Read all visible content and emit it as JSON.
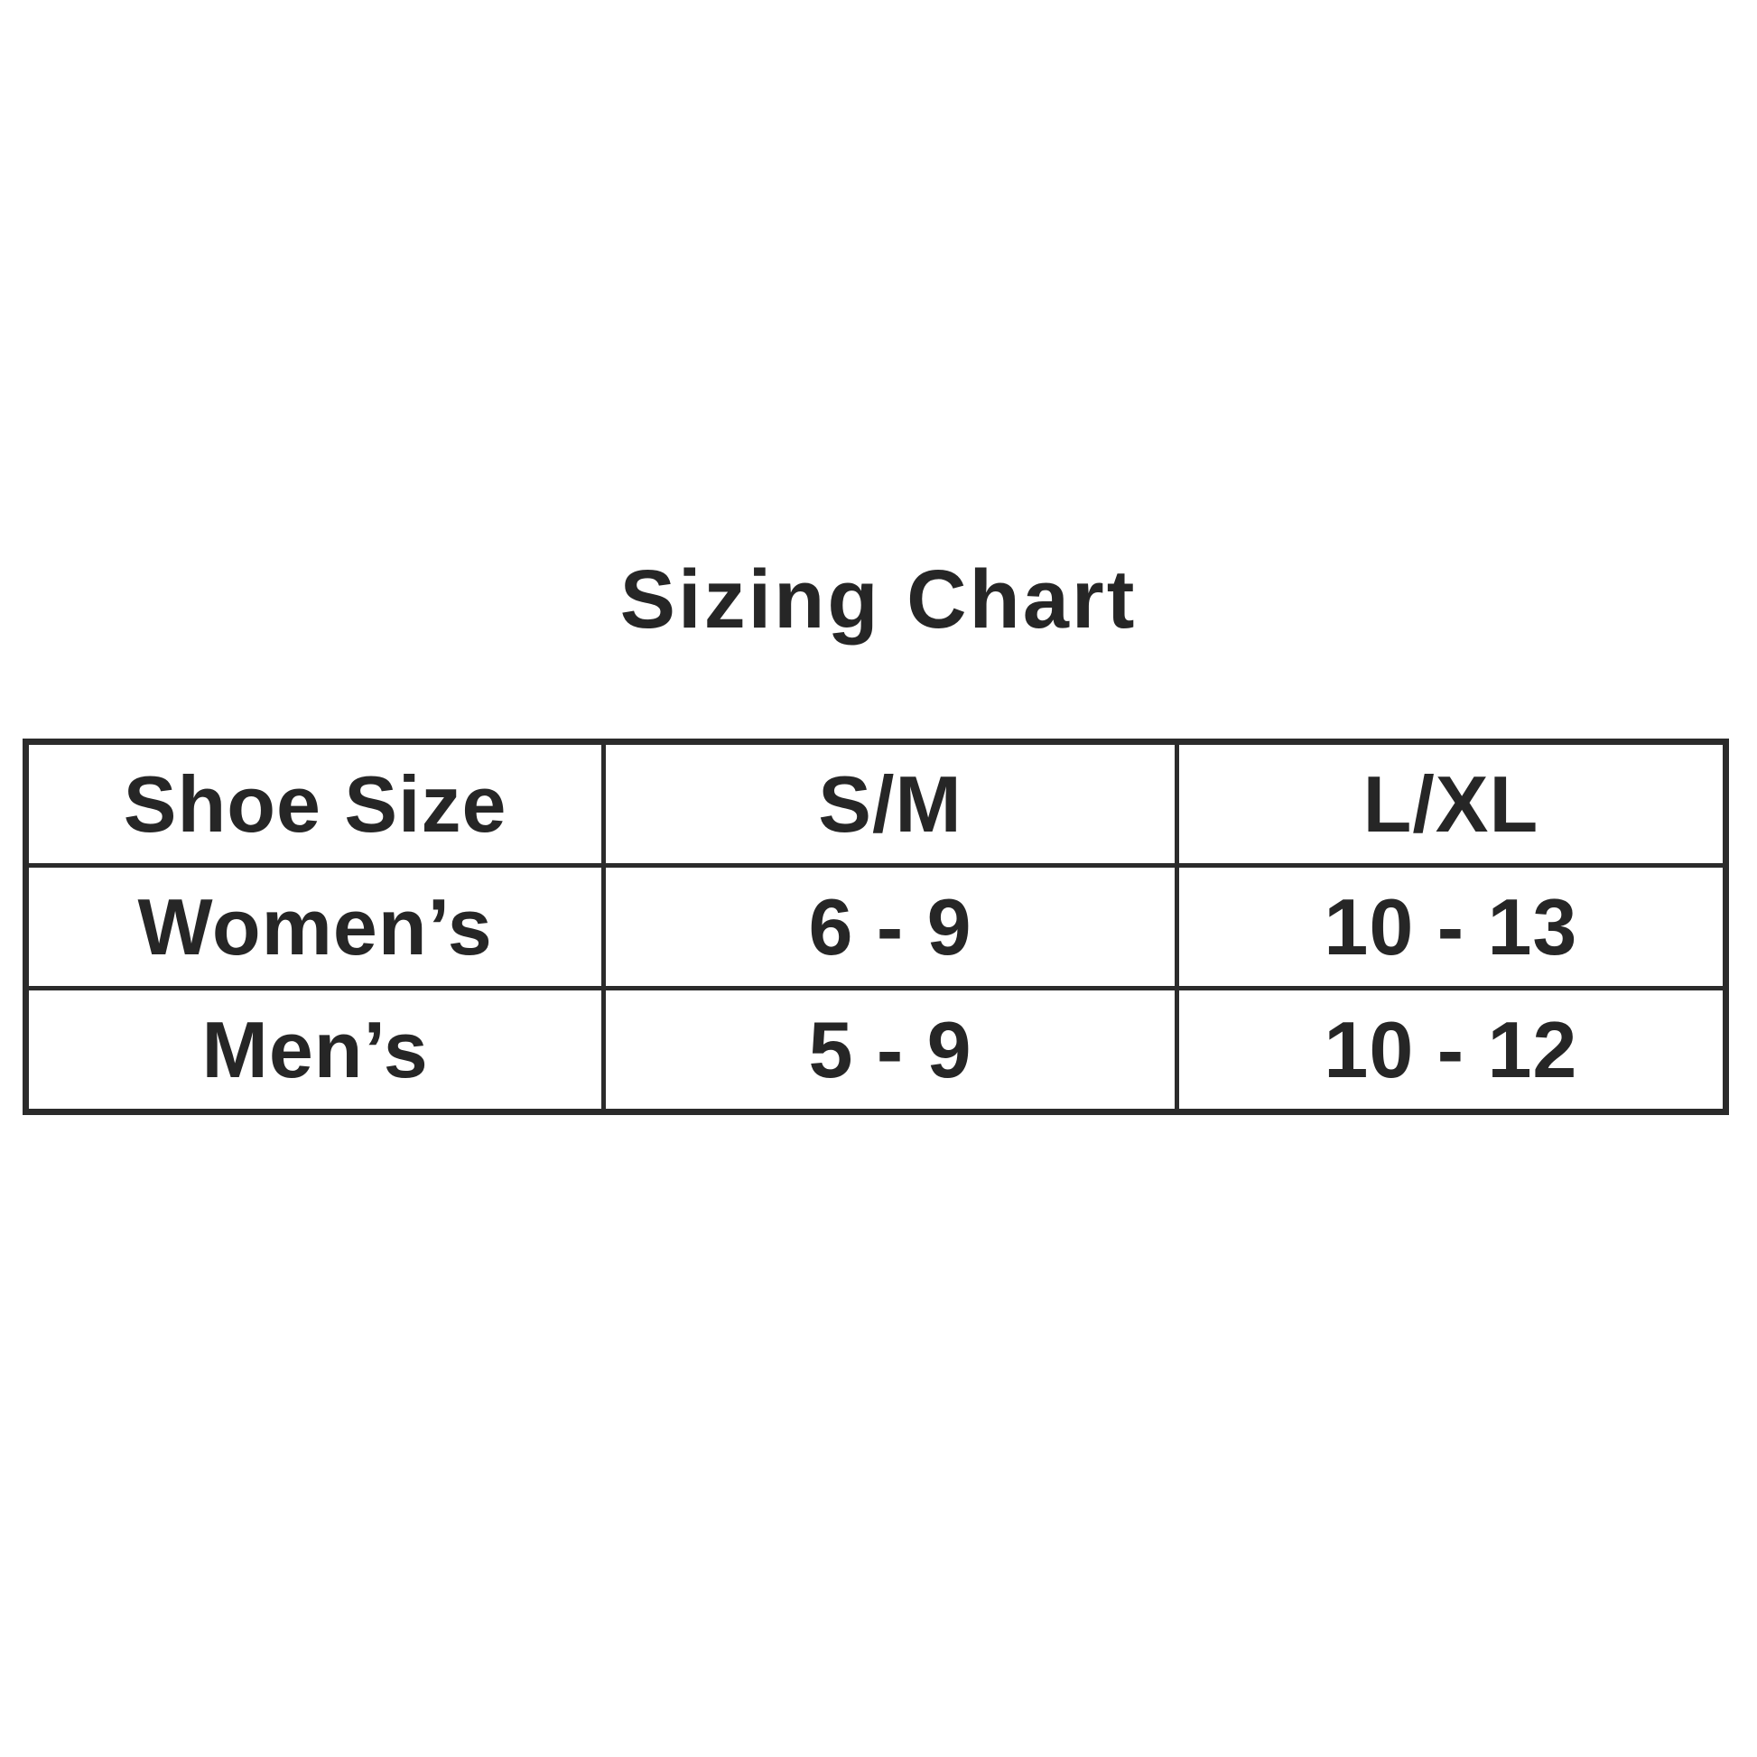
{
  "page": {
    "background": "#ffffff",
    "text_color": "#262626",
    "border_color": "#2b2b2b"
  },
  "chart_data": {
    "type": "table",
    "title": "Sizing Chart",
    "columns": [
      "Shoe Size",
      "S/M",
      "L/XL"
    ],
    "rows": [
      [
        "Women’s",
        "6 - 9",
        "10 - 13"
      ],
      [
        "Men’s",
        "5 - 9",
        "10 - 12"
      ]
    ],
    "layout_hints": {
      "title_position": "top-center",
      "grid": "full-borders",
      "text_style": "bold"
    }
  }
}
